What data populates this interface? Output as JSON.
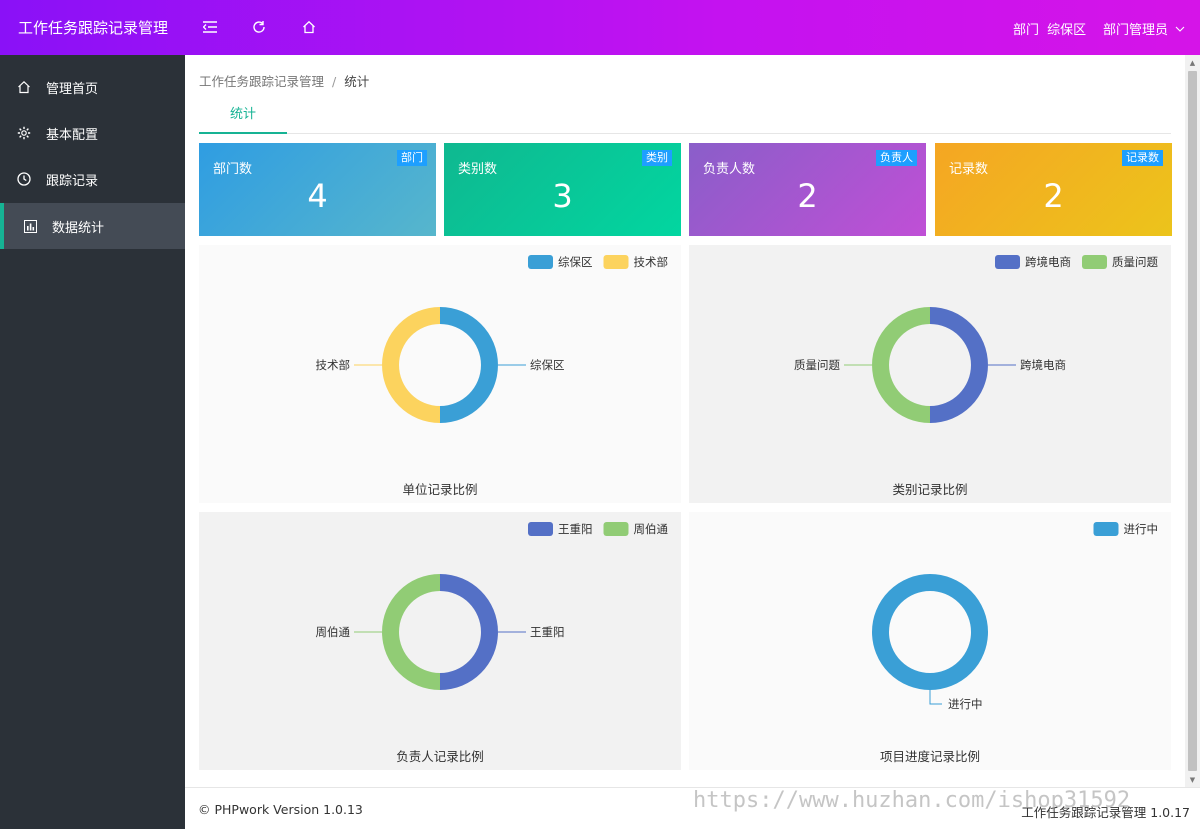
{
  "header": {
    "app_title": "工作任务跟踪记录管理",
    "dept_label": "部门",
    "dept_value": "综保区",
    "user_label": "部门管理员"
  },
  "sidebar": {
    "items": [
      {
        "label": "管理首页",
        "icon": "home-icon"
      },
      {
        "label": "基本配置",
        "icon": "gear-icon"
      },
      {
        "label": "跟踪记录",
        "icon": "clock-icon"
      },
      {
        "label": "数据统计",
        "icon": "bar-chart-icon",
        "active": true
      }
    ]
  },
  "breadcrumb": {
    "root": "工作任务跟踪记录管理",
    "separator": "/",
    "current": "统计"
  },
  "tabs": [
    {
      "label": "统计"
    }
  ],
  "cards": [
    {
      "label": "部门数",
      "badge": "部门",
      "value": "4"
    },
    {
      "label": "类别数",
      "badge": "类别",
      "value": "3"
    },
    {
      "label": "负责人数",
      "badge": "负责人",
      "value": "2"
    },
    {
      "label": "记录数",
      "badge": "记录数",
      "value": "2"
    }
  ],
  "colors": {
    "blue": "#3a9fd6",
    "yellow": "#fcd35e",
    "indigo": "#5470c6",
    "green": "#91cc75",
    "accent": "#16b394"
  },
  "chart_data": [
    {
      "type": "pie",
      "title": "单位记录比例",
      "series": [
        {
          "name": "综保区",
          "value": 1,
          "color": "#3a9fd6"
        },
        {
          "name": "技术部",
          "value": 1,
          "color": "#fcd35e"
        }
      ]
    },
    {
      "type": "pie",
      "title": "类别记录比例",
      "series": [
        {
          "name": "跨境电商",
          "value": 1,
          "color": "#5470c6"
        },
        {
          "name": "质量问题",
          "value": 1,
          "color": "#91cc75"
        }
      ]
    },
    {
      "type": "pie",
      "title": "负责人记录比例",
      "series": [
        {
          "name": "王重阳",
          "value": 1,
          "color": "#5470c6"
        },
        {
          "name": "周伯通",
          "value": 1,
          "color": "#91cc75"
        }
      ]
    },
    {
      "type": "pie",
      "title": "项目进度记录比例",
      "series": [
        {
          "name": "进行中",
          "value": 2,
          "color": "#3a9fd6"
        }
      ]
    }
  ],
  "footer": {
    "left": "© PHPwork Version 1.0.13",
    "right": "工作任务跟踪记录管理 1.0.17"
  },
  "watermark": "https://www.huzhan.com/ishop31592"
}
